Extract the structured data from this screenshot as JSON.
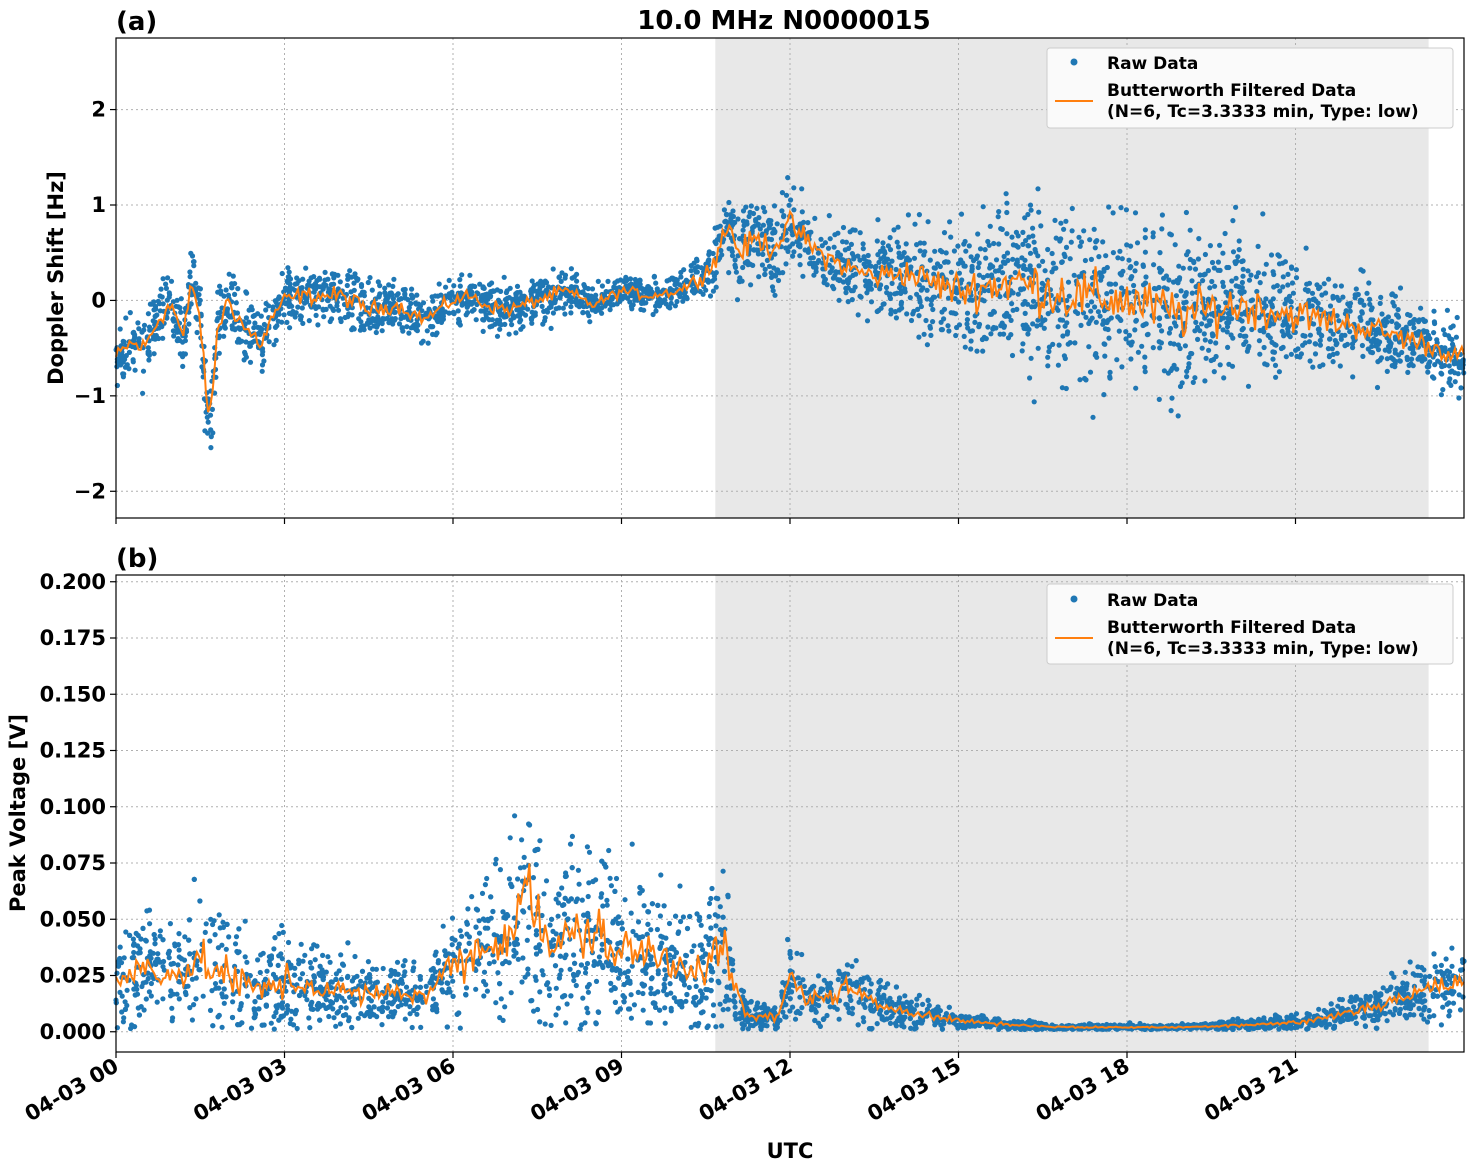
{
  "figure": {
    "title": "10.0 MHz N0000015",
    "xlabel": "UTC"
  },
  "legend": {
    "raw_label": "Raw Data",
    "filtered_label_line1": "Butterworth Filtered Data",
    "filtered_label_line2": "(N=6, Tc=3.3333 min, Type: low)"
  },
  "colors": {
    "raw": "#1f77b4",
    "filtered": "#ff7f0e",
    "shade": "#e8e8e8",
    "grid": "#b0b0b0"
  },
  "chart_data": [
    {
      "type": "scatter",
      "panel_label": "(a)",
      "ylabel": "Doppler Shift [Hz]",
      "ylim": [
        -2.28,
        2.75
      ],
      "yticks": [
        2,
        1,
        0,
        -1,
        -2
      ],
      "ytick_labels": [
        "2",
        "1",
        "0",
        "−1",
        "−2"
      ],
      "xlim_hours": [
        0,
        24
      ],
      "xticks_hours": [
        0,
        3,
        6,
        9,
        12,
        15,
        18,
        21
      ],
      "xtick_labels": [
        "04-03 00",
        "04-03 03",
        "04-03 06",
        "04-03 09",
        "04-03 12",
        "04-03 15",
        "04-03 18",
        "04-03 21"
      ],
      "shaded_hours": [
        10.67,
        23.37
      ],
      "grid": true,
      "legend_position": "upper right",
      "series": [
        {
          "name": "Butterworth Filtered Data",
          "kind": "line",
          "x": [
            0,
            0.25,
            0.5,
            0.8,
            1.0,
            1.2,
            1.35,
            1.5,
            1.6,
            1.7,
            1.8,
            2.0,
            2.3,
            2.6,
            2.8,
            3.0,
            3.3,
            4.0,
            4.5,
            5.0,
            5.5,
            6.0,
            6.3,
            6.6,
            7.0,
            7.5,
            8.0,
            8.5,
            9.0,
            9.5,
            10.0,
            10.3,
            10.6,
            10.9,
            11.1,
            11.4,
            11.7,
            12.0,
            12.5,
            13.0,
            13.5,
            14.0,
            15.0,
            16.0,
            17.0,
            18.0,
            19.0,
            20.0,
            21.0,
            22.0,
            23.0,
            23.5,
            24.0
          ],
          "y": [
            -0.6,
            -0.45,
            -0.5,
            -0.15,
            -0.05,
            -0.4,
            0.2,
            -0.2,
            -1.0,
            -1.2,
            -0.3,
            0.0,
            -0.3,
            -0.45,
            -0.15,
            0.0,
            0.05,
            0.05,
            -0.1,
            -0.05,
            -0.2,
            0.0,
            0.05,
            -0.05,
            -0.1,
            0.0,
            0.1,
            -0.05,
            0.1,
            0.05,
            0.1,
            0.2,
            0.35,
            0.8,
            0.5,
            0.65,
            0.55,
            0.8,
            0.5,
            0.35,
            0.25,
            0.3,
            0.1,
            0.2,
            0.05,
            0.0,
            -0.15,
            -0.05,
            -0.15,
            -0.25,
            -0.4,
            -0.5,
            -0.6
          ]
        },
        {
          "name": "Raw Data",
          "kind": "scatter",
          "spread": [
            0.25,
            0.25,
            0.3,
            0.3,
            0.3,
            0.3,
            0.3,
            0.3,
            0.35,
            0.35,
            0.3,
            0.3,
            0.3,
            0.3,
            0.25,
            0.25,
            0.25,
            0.25,
            0.25,
            0.2,
            0.2,
            0.2,
            0.2,
            0.2,
            0.2,
            0.2,
            0.2,
            0.15,
            0.15,
            0.15,
            0.15,
            0.2,
            0.3,
            0.35,
            0.35,
            0.35,
            0.35,
            0.35,
            0.35,
            0.35,
            0.35,
            0.4,
            0.55,
            0.7,
            0.8,
            0.75,
            0.7,
            0.65,
            0.5,
            0.4,
            0.35,
            0.3,
            0.3
          ]
        }
      ]
    },
    {
      "type": "scatter",
      "panel_label": "(b)",
      "ylabel": "Peak Voltage [V]",
      "ylim": [
        -0.009,
        0.203
      ],
      "yticks": [
        0.0,
        0.025,
        0.05,
        0.075,
        0.1,
        0.125,
        0.15,
        0.175,
        0.2
      ],
      "ytick_labels": [
        "0.000",
        "0.025",
        "0.050",
        "0.075",
        "0.100",
        "0.125",
        "0.150",
        "0.175",
        "0.200"
      ],
      "xlim_hours": [
        0,
        24
      ],
      "xticks_hours": [
        0,
        3,
        6,
        9,
        12,
        15,
        18,
        21
      ],
      "xtick_labels": [
        "04-03 00",
        "04-03 03",
        "04-03 06",
        "04-03 09",
        "04-03 12",
        "04-03 15",
        "04-03 18",
        "04-03 21"
      ],
      "shaded_hours": [
        10.67,
        23.37
      ],
      "grid": true,
      "legend_position": "upper right",
      "series": [
        {
          "name": "Butterworth Filtered Data",
          "kind": "line",
          "x": [
            0,
            0.5,
            1.0,
            1.5,
            2.0,
            2.5,
            3.0,
            3.5,
            4.0,
            4.5,
            5.0,
            5.5,
            6.0,
            6.5,
            7.0,
            7.3,
            7.6,
            8.0,
            8.5,
            9.0,
            9.5,
            10.0,
            10.5,
            10.8,
            11.0,
            11.2,
            11.5,
            11.8,
            12.0,
            12.3,
            12.7,
            13.0,
            13.5,
            14.0,
            14.5,
            15.0,
            15.5,
            16.0,
            17.0,
            18.0,
            19.0,
            20.0,
            21.0,
            21.5,
            22.0,
            22.5,
            23.0,
            23.5,
            24.0
          ],
          "y": [
            0.02,
            0.03,
            0.025,
            0.03,
            0.025,
            0.018,
            0.022,
            0.02,
            0.018,
            0.016,
            0.018,
            0.016,
            0.03,
            0.035,
            0.045,
            0.07,
            0.04,
            0.04,
            0.045,
            0.035,
            0.035,
            0.03,
            0.03,
            0.04,
            0.02,
            0.008,
            0.006,
            0.007,
            0.025,
            0.015,
            0.015,
            0.02,
            0.012,
            0.01,
            0.007,
            0.005,
            0.004,
            0.003,
            0.002,
            0.002,
            0.002,
            0.003,
            0.004,
            0.006,
            0.009,
            0.012,
            0.016,
            0.02,
            0.022
          ]
        },
        {
          "name": "Raw Data",
          "kind": "scatter",
          "spread": [
            0.015,
            0.02,
            0.02,
            0.025,
            0.025,
            0.015,
            0.02,
            0.015,
            0.015,
            0.012,
            0.012,
            0.012,
            0.02,
            0.025,
            0.035,
            0.045,
            0.035,
            0.035,
            0.035,
            0.03,
            0.03,
            0.025,
            0.025,
            0.03,
            0.015,
            0.006,
            0.005,
            0.006,
            0.015,
            0.01,
            0.01,
            0.012,
            0.008,
            0.006,
            0.005,
            0.003,
            0.002,
            0.002,
            0.001,
            0.001,
            0.001,
            0.002,
            0.003,
            0.004,
            0.006,
            0.008,
            0.01,
            0.012,
            0.015
          ]
        }
      ]
    }
  ]
}
